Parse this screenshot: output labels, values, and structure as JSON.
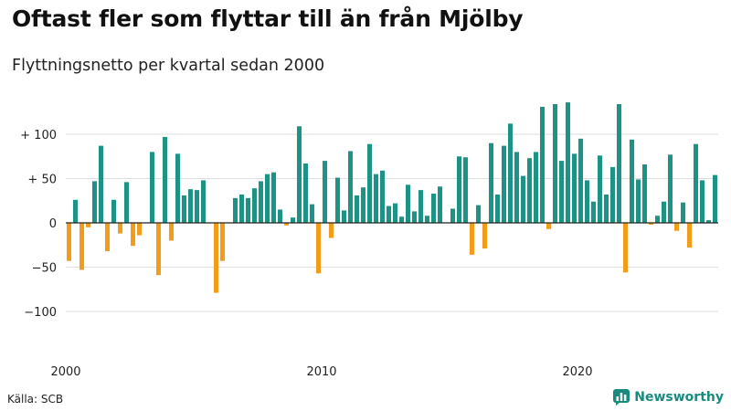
{
  "title": "Oftast fler som flyttar till än från Mjölby",
  "subtitle": "Flyttningsnetto per kvartal sedan 2000",
  "source": "Källa: SCB",
  "brand": "Newsworthy",
  "colors": {
    "positive": "#1d9385",
    "negative": "#f39c1b",
    "grid": "#dddddd",
    "zero": "#222222",
    "brand": "#1b8a7e"
  },
  "chart_data": {
    "type": "bar",
    "title": "Oftast fler som flyttar till än från Mjölby",
    "subtitle": "Flyttningsnetto per kvartal sedan 2000",
    "xlabel": "",
    "ylabel": "",
    "x_start": "2000-Q1",
    "x_ticks": [
      {
        "label": "2000",
        "index": 0
      },
      {
        "label": "2010",
        "index": 40
      },
      {
        "label": "2020",
        "index": 80
      }
    ],
    "y_ticks": [
      {
        "label": "+ 100",
        "value": 100
      },
      {
        "label": "+  50",
        "value": 50
      },
      {
        "label": "0",
        "value": 0
      },
      {
        "label": "−50",
        "value": -50
      },
      {
        "label": "−100",
        "value": -100
      }
    ],
    "ylim": [
      -135,
      145
    ],
    "grid": true,
    "values": [
      -43,
      26,
      -53,
      -5,
      47,
      87,
      -32,
      26,
      -12,
      46,
      -26,
      -14,
      0,
      80,
      -59,
      97,
      -20,
      78,
      31,
      38,
      37,
      48,
      0,
      -79,
      -43,
      0,
      28,
      32,
      28,
      39,
      47,
      55,
      57,
      15,
      -3,
      6,
      109,
      67,
      21,
      -57,
      70,
      -17,
      51,
      14,
      81,
      31,
      40,
      89,
      55,
      59,
      19,
      22,
      7,
      43,
      13,
      37,
      8,
      33,
      41,
      0,
      16,
      75,
      74,
      -36,
      20,
      -29,
      90,
      32,
      87,
      112,
      80,
      53,
      73,
      80,
      131,
      -7,
      134,
      70,
      136,
      78,
      95,
      48,
      24,
      76,
      32,
      63,
      134,
      -56,
      94,
      49,
      66,
      -2,
      8,
      24,
      77,
      -9,
      23,
      -28,
      89,
      48,
      3,
      54
    ]
  }
}
